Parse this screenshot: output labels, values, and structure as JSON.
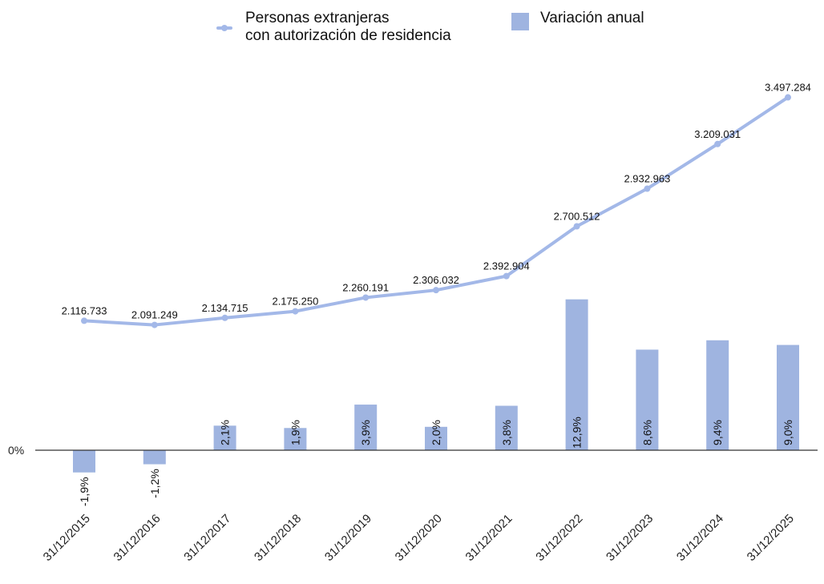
{
  "legend": {
    "line_label_1": "Personas extranjeras",
    "line_label_2": "con autorización de residencia",
    "bar_label": "Variación anual"
  },
  "colors": {
    "line": "#a3b8e8",
    "bar": "#9fb4e0",
    "axis": "#333333"
  },
  "chart_data": {
    "type": "bar+line",
    "categories": [
      "31/12/2015",
      "31/12/2016",
      "31/12/2017",
      "31/12/2018",
      "31/12/2019",
      "31/12/2020",
      "31/12/2021",
      "31/12/2022",
      "31/12/2023",
      "31/12/2024",
      "31/12/2025"
    ],
    "series": [
      {
        "name": "Personas extranjeras con autorización de residencia",
        "type": "line",
        "values": [
          2116733,
          2091249,
          2134715,
          2175250,
          2260191,
          2306032,
          2392904,
          2700512,
          2932963,
          3209031,
          3497284
        ],
        "labels": [
          "2.116.733",
          "2.091.249",
          "2.134.715",
          "2.175.250",
          "2.260.191",
          "2.306.032",
          "2.392.904",
          "2.700.512",
          "2.932.963",
          "3.209.031",
          "3.497.284"
        ]
      },
      {
        "name": "Variación anual",
        "type": "bar",
        "values": [
          -1.9,
          -1.2,
          2.1,
          1.9,
          3.9,
          2.0,
          3.8,
          12.9,
          8.6,
          9.4,
          9.0
        ],
        "labels": [
          "-1,9%",
          "-1,2%",
          "2,1%",
          "1,9%",
          "3,9%",
          "2,0%",
          "3,8%",
          "12,9%",
          "8,6%",
          "9,4%",
          "9,0%"
        ]
      }
    ],
    "y_axis_tick": "0%",
    "grid": false,
    "legend_position": "top"
  }
}
